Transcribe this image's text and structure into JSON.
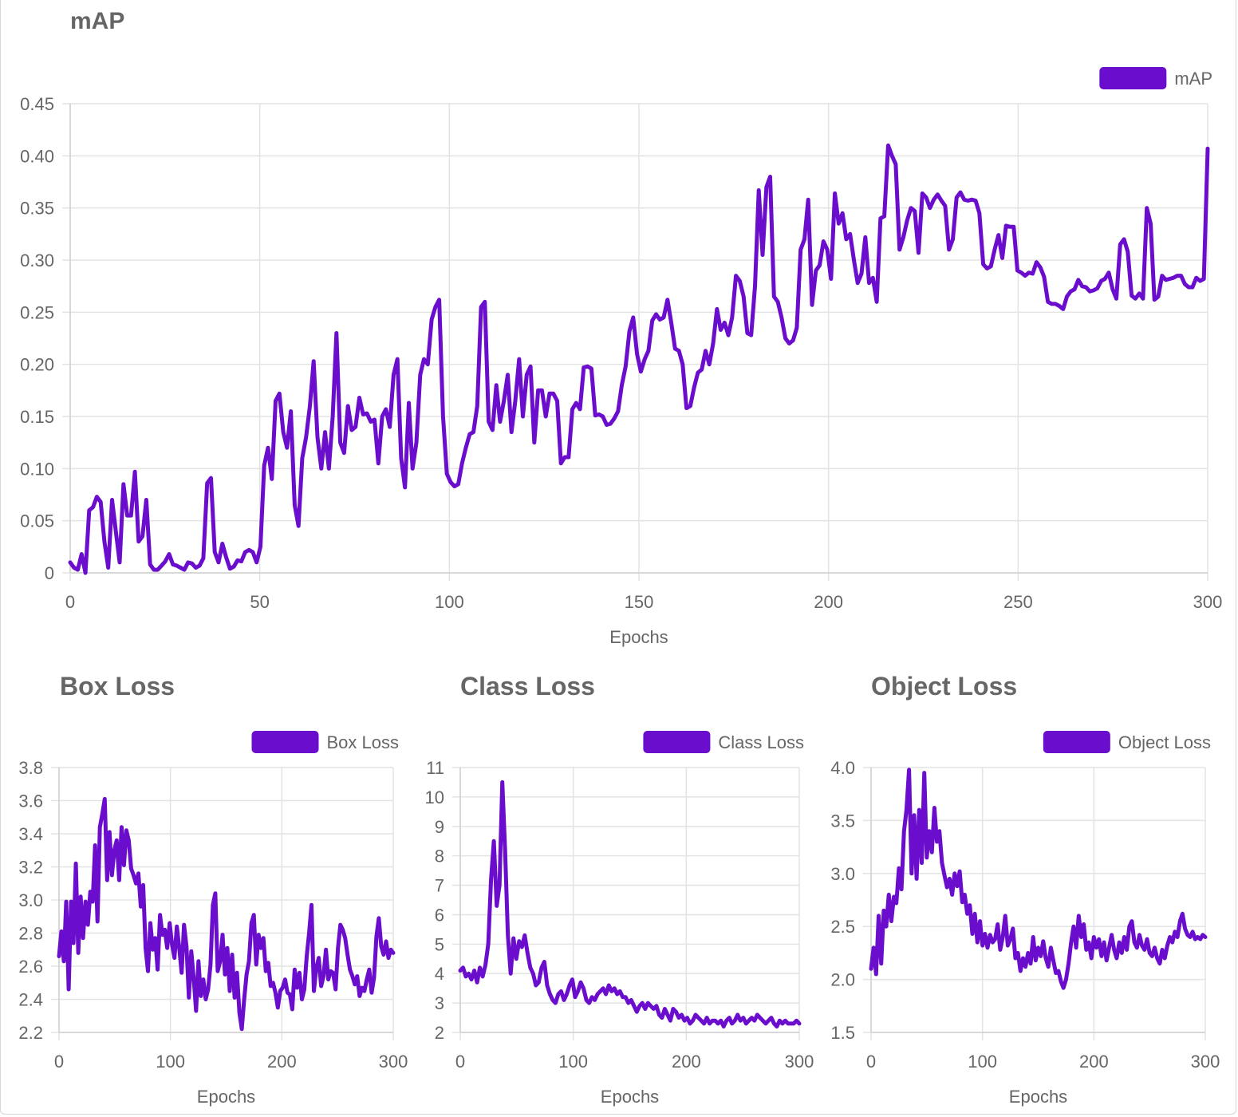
{
  "theme": {
    "line_color": "#6a0dcc",
    "grid_color": "#e3e3e3",
    "text_color": "#666666"
  },
  "chart_data": [
    {
      "id": "map",
      "type": "line",
      "title": "mAP",
      "xlabel": "Epochs",
      "ylabel": "",
      "legend": [
        "mAP"
      ],
      "legend_position": "top-right",
      "grid": true,
      "xlim": [
        0,
        300
      ],
      "ylim": [
        0,
        0.45
      ],
      "xticks": [
        "0",
        "50",
        "100",
        "150",
        "200",
        "250",
        "300"
      ],
      "yticks": [
        "0",
        "0.05",
        "0.10",
        "0.15",
        "0.20",
        "0.25",
        "0.30",
        "0.35",
        "0.40",
        "0.45"
      ],
      "series": [
        {
          "name": "mAP",
          "values": [
            0.01,
            0.005,
            0.003,
            0.018,
            0.0,
            0.06,
            0.063,
            0.073,
            0.068,
            0.03,
            0.005,
            0.07,
            0.04,
            0.01,
            0.085,
            0.055,
            0.055,
            0.097,
            0.03,
            0.035,
            0.07,
            0.008,
            0.003,
            0.003,
            0.007,
            0.011,
            0.018,
            0.008,
            0.007,
            0.005,
            0.003,
            0.01,
            0.009,
            0.005,
            0.007,
            0.014,
            0.086,
            0.091,
            0.02,
            0.01,
            0.028,
            0.015,
            0.004,
            0.006,
            0.012,
            0.011,
            0.02,
            0.022,
            0.02,
            0.01,
            0.025,
            0.103,
            0.12,
            0.09,
            0.165,
            0.172,
            0.135,
            0.12,
            0.155,
            0.065,
            0.045,
            0.11,
            0.13,
            0.16,
            0.203,
            0.13,
            0.1,
            0.135,
            0.1,
            0.15,
            0.23,
            0.125,
            0.115,
            0.16,
            0.137,
            0.14,
            0.168,
            0.152,
            0.153,
            0.145,
            0.147,
            0.105,
            0.15,
            0.157,
            0.14,
            0.19,
            0.205,
            0.11,
            0.082,
            0.163,
            0.1,
            0.125,
            0.19,
            0.205,
            0.2,
            0.243,
            0.255,
            0.262,
            0.15,
            0.095,
            0.087,
            0.083,
            0.085,
            0.105,
            0.12,
            0.133,
            0.135,
            0.16,
            0.255,
            0.26,
            0.145,
            0.137,
            0.18,
            0.145,
            0.165,
            0.19,
            0.135,
            0.165,
            0.205,
            0.15,
            0.19,
            0.198,
            0.125,
            0.175,
            0.175,
            0.15,
            0.172,
            0.172,
            0.165,
            0.105,
            0.111,
            0.111,
            0.157,
            0.163,
            0.157,
            0.197,
            0.198,
            0.196,
            0.151,
            0.152,
            0.15,
            0.142,
            0.143,
            0.148,
            0.155,
            0.18,
            0.198,
            0.232,
            0.245,
            0.21,
            0.193,
            0.205,
            0.213,
            0.242,
            0.248,
            0.243,
            0.245,
            0.262,
            0.24,
            0.215,
            0.213,
            0.2,
            0.158,
            0.16,
            0.178,
            0.192,
            0.195,
            0.213,
            0.2,
            0.22,
            0.253,
            0.233,
            0.24,
            0.228,
            0.245,
            0.285,
            0.28,
            0.265,
            0.23,
            0.228,
            0.275,
            0.367,
            0.305,
            0.37,
            0.38,
            0.265,
            0.26,
            0.245,
            0.225,
            0.22,
            0.223,
            0.235,
            0.31,
            0.32,
            0.358,
            0.257,
            0.29,
            0.295,
            0.318,
            0.31,
            0.282,
            0.364,
            0.335,
            0.345,
            0.32,
            0.325,
            0.3,
            0.278,
            0.287,
            0.322,
            0.278,
            0.283,
            0.26,
            0.34,
            0.342,
            0.41,
            0.4,
            0.392,
            0.31,
            0.322,
            0.338,
            0.35,
            0.347,
            0.307,
            0.364,
            0.36,
            0.35,
            0.358,
            0.363,
            0.357,
            0.352,
            0.31,
            0.32,
            0.36,
            0.365,
            0.358,
            0.357,
            0.358,
            0.357,
            0.345,
            0.296,
            0.292,
            0.294,
            0.31,
            0.324,
            0.302,
            0.333,
            0.332,
            0.332,
            0.29,
            0.288,
            0.285,
            0.288,
            0.287,
            0.298,
            0.293,
            0.284,
            0.26,
            0.258,
            0.258,
            0.256,
            0.253,
            0.265,
            0.27,
            0.272,
            0.281,
            0.275,
            0.274,
            0.27,
            0.271,
            0.273,
            0.28,
            0.282,
            0.288,
            0.272,
            0.263,
            0.315,
            0.32,
            0.308,
            0.266,
            0.263,
            0.268,
            0.263,
            0.35,
            0.335,
            0.262,
            0.265,
            0.285,
            0.281,
            0.282,
            0.283,
            0.285,
            0.285,
            0.277,
            0.274,
            0.274,
            0.283,
            0.28,
            0.282,
            0.407
          ]
        }
      ]
    },
    {
      "id": "box",
      "type": "line",
      "title": "Box Loss",
      "xlabel": "Epochs",
      "ylabel": "",
      "legend": [
        "Box Loss"
      ],
      "legend_position": "top-right",
      "grid": true,
      "xlim": [
        0,
        300
      ],
      "ylim": [
        2.2,
        3.8
      ],
      "xticks": [
        "0",
        "100",
        "200",
        "300"
      ],
      "yticks": [
        "2.2",
        "2.4",
        "2.6",
        "2.8",
        "3.0",
        "3.2",
        "3.4",
        "3.6",
        "3.8"
      ],
      "series": [
        {
          "name": "Box Loss",
          "values": [
            2.66,
            2.81,
            2.63,
            2.99,
            2.46,
            2.99,
            2.74,
            3.22,
            2.68,
            3.02,
            2.77,
            2.99,
            2.85,
            3.05,
            2.99,
            3.33,
            2.87,
            3.44,
            3.52,
            3.61,
            3.12,
            3.41,
            3.15,
            3.3,
            3.36,
            3.12,
            3.44,
            3.21,
            3.42,
            3.36,
            3.19,
            3.15,
            3.1,
            3.16,
            2.96,
            3.09,
            2.71,
            2.57,
            2.86,
            2.7,
            2.77,
            2.58,
            2.91,
            2.79,
            2.82,
            2.71,
            2.86,
            2.73,
            2.65,
            2.84,
            2.71,
            2.56,
            2.85,
            2.72,
            2.41,
            2.69,
            2.53,
            2.33,
            2.63,
            2.42,
            2.52,
            2.4,
            2.46,
            2.61,
            2.97,
            3.04,
            2.57,
            2.63,
            2.79,
            2.55,
            2.71,
            2.45,
            2.67,
            2.41,
            2.56,
            2.32,
            2.22,
            2.4,
            2.55,
            2.63,
            2.86,
            2.91,
            2.61,
            2.79,
            2.71,
            2.77,
            2.57,
            2.62,
            2.48,
            2.5,
            2.44,
            2.35,
            2.45,
            2.47,
            2.52,
            2.44,
            2.43,
            2.34,
            2.58,
            2.47,
            2.56,
            2.4,
            2.46,
            2.66,
            2.8,
            2.97,
            2.45,
            2.59,
            2.65,
            2.48,
            2.54,
            2.7,
            2.52,
            2.57,
            2.56,
            2.46,
            2.71,
            2.85,
            2.82,
            2.77,
            2.67,
            2.58,
            2.54,
            2.49,
            2.54,
            2.42,
            2.47,
            2.45,
            2.52,
            2.58,
            2.44,
            2.53,
            2.78,
            2.89,
            2.72,
            2.67,
            2.75,
            2.65,
            2.7,
            2.68
          ]
        }
      ]
    },
    {
      "id": "class",
      "type": "line",
      "title": "Class Loss",
      "xlabel": "Epochs",
      "ylabel": "",
      "legend": [
        "Class Loss"
      ],
      "legend_position": "top-right",
      "grid": true,
      "xlim": [
        0,
        300
      ],
      "ylim": [
        2,
        11
      ],
      "xticks": [
        "0",
        "100",
        "200",
        "300"
      ],
      "yticks": [
        "2",
        "3",
        "4",
        "5",
        "6",
        "7",
        "8",
        "9",
        "10",
        "11"
      ],
      "series": [
        {
          "name": "Class Loss",
          "values": [
            4.1,
            4.2,
            3.9,
            4.0,
            3.8,
            4.1,
            3.7,
            4.2,
            3.9,
            4.3,
            5.0,
            7.2,
            8.5,
            6.3,
            7.0,
            10.5,
            8.2,
            5.3,
            4.0,
            5.2,
            4.5,
            5.1,
            4.9,
            5.3,
            4.7,
            4.2,
            4.0,
            3.6,
            3.7,
            4.2,
            4.4,
            3.6,
            3.3,
            3.1,
            3.0,
            3.3,
            3.4,
            3.1,
            3.3,
            3.6,
            3.8,
            3.2,
            3.4,
            3.7,
            3.5,
            3.1,
            3.0,
            3.2,
            3.1,
            3.3,
            3.4,
            3.5,
            3.3,
            3.6,
            3.4,
            3.5,
            3.3,
            3.4,
            3.2,
            3.2,
            3.0,
            3.1,
            2.9,
            2.7,
            2.9,
            3.0,
            2.8,
            3.0,
            2.9,
            2.8,
            2.9,
            2.6,
            2.5,
            2.8,
            2.6,
            2.4,
            2.8,
            2.7,
            2.5,
            2.6,
            2.4,
            2.5,
            2.3,
            2.4,
            2.6,
            2.5,
            2.4,
            2.3,
            2.5,
            2.3,
            2.4,
            2.4,
            2.3,
            2.4,
            2.2,
            2.4,
            2.5,
            2.3,
            2.4,
            2.6,
            2.4,
            2.5,
            2.3,
            2.4,
            2.5,
            2.4,
            2.6,
            2.5,
            2.4,
            2.3,
            2.4,
            2.5,
            2.3,
            2.2,
            2.4,
            2.3,
            2.4,
            2.3,
            2.3,
            2.3,
            2.4,
            2.3
          ]
        }
      ]
    },
    {
      "id": "obj",
      "type": "line",
      "title": "Object Loss",
      "xlabel": "Epochs",
      "ylabel": "",
      "legend": [
        "Object Loss"
      ],
      "legend_position": "top-right",
      "grid": true,
      "xlim": [
        0,
        300
      ],
      "ylim": [
        1.5,
        4.0
      ],
      "xticks": [
        "0",
        "100",
        "200",
        "300"
      ],
      "yticks": [
        "1.5",
        "2.0",
        "2.5",
        "3.0",
        "3.5",
        "4.0"
      ],
      "series": [
        {
          "name": "Object Loss",
          "values": [
            2.1,
            2.3,
            2.05,
            2.6,
            2.15,
            2.65,
            2.5,
            2.8,
            2.55,
            2.78,
            2.72,
            3.05,
            2.85,
            3.4,
            3.6,
            3.98,
            3.0,
            3.55,
            2.95,
            3.6,
            3.1,
            3.95,
            3.15,
            3.4,
            3.2,
            3.62,
            3.3,
            3.4,
            3.1,
            2.98,
            2.87,
            2.95,
            2.8,
            3.0,
            2.88,
            3.02,
            2.73,
            2.8,
            2.62,
            2.7,
            2.43,
            2.62,
            2.35,
            2.55,
            2.32,
            2.43,
            2.3,
            2.42,
            2.35,
            2.38,
            2.52,
            2.28,
            2.4,
            2.6,
            2.32,
            2.38,
            2.48,
            2.2,
            2.25,
            2.08,
            2.2,
            2.12,
            2.25,
            2.15,
            2.4,
            2.18,
            2.3,
            2.22,
            2.36,
            2.2,
            2.12,
            2.3,
            2.18,
            2.06,
            2.08,
            1.98,
            1.92,
            2.0,
            2.15,
            2.35,
            2.5,
            2.3,
            2.6,
            2.4,
            2.52,
            2.28,
            2.35,
            2.2,
            2.4,
            2.3,
            2.38,
            2.22,
            2.35,
            2.18,
            2.3,
            2.42,
            2.28,
            2.2,
            2.35,
            2.25,
            2.4,
            2.28,
            2.5,
            2.55,
            2.35,
            2.3,
            2.42,
            2.32,
            2.28,
            2.38,
            2.25,
            2.22,
            2.3,
            2.2,
            2.15,
            2.28,
            2.2,
            2.32,
            2.4,
            2.35,
            2.45,
            2.4,
            2.55,
            2.62,
            2.48,
            2.42,
            2.4,
            2.45,
            2.38,
            2.4,
            2.38,
            2.42,
            2.4
          ]
        }
      ]
    }
  ]
}
